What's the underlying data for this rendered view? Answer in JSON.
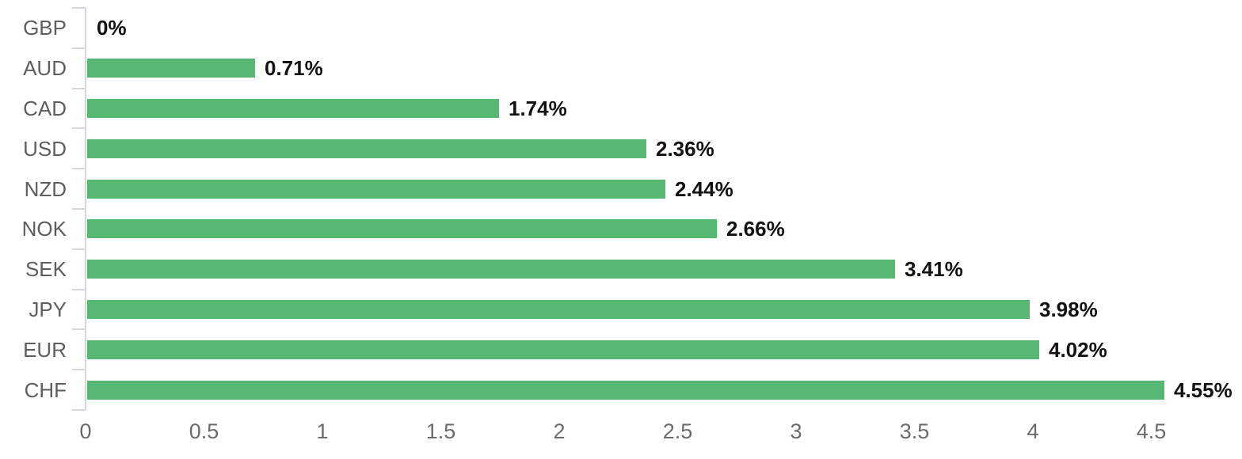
{
  "chart_data": {
    "type": "bar",
    "orientation": "horizontal",
    "title": "",
    "xlabel": "",
    "ylabel": "",
    "categories": [
      "GBP",
      "AUD",
      "CAD",
      "USD",
      "NZD",
      "NOK",
      "SEK",
      "JPY",
      "EUR",
      "CHF"
    ],
    "values": [
      0,
      0.71,
      1.74,
      2.36,
      2.44,
      2.66,
      3.41,
      3.98,
      4.02,
      4.55
    ],
    "value_labels": [
      "0%",
      "0.71%",
      "1.74%",
      "2.36%",
      "2.44%",
      "2.66%",
      "3.41%",
      "3.98%",
      "4.02%",
      "4.55%"
    ],
    "x_ticks": [
      0,
      0.5,
      1,
      1.5,
      2,
      2.5,
      3,
      3.5,
      4,
      4.5
    ],
    "x_tick_labels": [
      "0",
      "0.5",
      "1",
      "1.5",
      "2",
      "2.5",
      "3",
      "3.5",
      "4",
      "4.5"
    ],
    "xlim": [
      0,
      4.88
    ],
    "grid": false,
    "legend": "none",
    "colors": {
      "bar": "#56b873",
      "axis": "#d3d6db",
      "category_label": "#5e5e5e",
      "value_label": "#121212",
      "x_tick_label": "#6b6b6b",
      "background": "#ffffff"
    }
  }
}
